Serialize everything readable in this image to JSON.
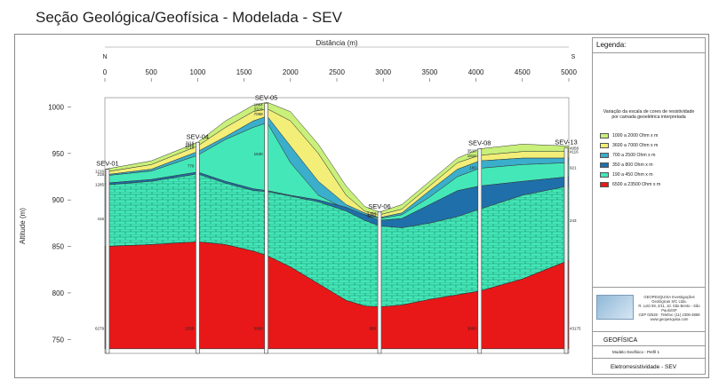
{
  "title": "Seção Geológica/Geofísica - Modelada - SEV",
  "xaxis": {
    "label": "Distância (m)",
    "ticks": [
      0,
      500,
      1000,
      1500,
      2000,
      2500,
      3000,
      3500,
      4000,
      4500,
      5000
    ],
    "range": [
      0,
      5000
    ]
  },
  "direction": {
    "left": "N",
    "right": "S"
  },
  "yaxis": {
    "label": "Altitude (m)",
    "ticks": [
      750,
      800,
      850,
      900,
      950,
      1000
    ],
    "range": [
      735,
      1010
    ]
  },
  "colors": {
    "layer_yellow_green": "#c8f07a",
    "layer_yellow": "#f2ee78",
    "layer_teal": "#3aaecb",
    "layer_blue": "#1f6faa",
    "layer_aqua": "#44e8b8",
    "layer_red": "#e81818"
  },
  "soundings": [
    {
      "name": "SEV-01",
      "x": 0,
      "top": 933,
      "values": [
        {
          "label": "1216",
          "z": 931
        },
        {
          "label": "218",
          "z": 928
        },
        {
          "label": "1285",
          "z": 917
        },
        {
          "label": "416",
          "z": 880
        },
        {
          "label": "6279",
          "z": 762
        }
      ]
    },
    {
      "name": "SEV-04",
      "x": 1000,
      "top": 962,
      "values": [
        {
          "label": "3116",
          "z": 962
        },
        {
          "label": "1816",
          "z": 960
        },
        {
          "label": "3715",
          "z": 957
        },
        {
          "label": "770",
          "z": 937
        },
        {
          "label": "2335",
          "z": 762
        }
      ]
    },
    {
      "name": "SEV-05",
      "x": 1740,
      "top": 1004,
      "values": [
        {
          "label": "1884",
          "z": 1003
        },
        {
          "label": "3316",
          "z": 998
        },
        {
          "label": "7068",
          "z": 993
        },
        {
          "label": "1630",
          "z": 950
        },
        {
          "label": "3000",
          "z": 762
        }
      ]
    },
    {
      "name": "SEV-06",
      "x": 2960,
      "top": 887,
      "values": [
        {
          "label": "1384",
          "z": 886
        },
        {
          "label": "3870",
          "z": 883
        },
        {
          "label": "950",
          "z": 762
        }
      ]
    },
    {
      "name": "SEV-08",
      "x": 4040,
      "top": 955,
      "values": [
        {
          "label": "3518",
          "z": 953
        },
        {
          "label": "1816",
          "z": 948
        },
        {
          "label": "100",
          "z": 935
        },
        {
          "label": "3000",
          "z": 762
        }
      ]
    },
    {
      "name": "SEV-13",
      "x": 5000,
      "top": 956,
      "values": [
        {
          "label": "4958",
          "z": 956
        },
        {
          "label": "4116",
          "z": 952
        },
        {
          "label": "921",
          "z": 935
        },
        {
          "label": "243",
          "z": 878
        },
        {
          "label": "43175",
          "z": 762
        }
      ]
    }
  ],
  "legend": {
    "title": "Legenda:",
    "description": "Variação da escala de cores de resistividade por camada geoelétrica interpretada",
    "items": [
      {
        "label": "1000 a 2000 Ohm x m",
        "color": "#c8f07a"
      },
      {
        "label": "3600 a 7000 Ohm x m",
        "color": "#f2ee78"
      },
      {
        "label": "700 a 2500 Ohm x m",
        "color": "#3aaecb"
      },
      {
        "label": "350 a 800 Ohm x m",
        "color": "#1f6faa"
      },
      {
        "label": "190 a 450 Ohm x m",
        "color": "#44e8b8"
      },
      {
        "label": "6500 a 23500 Ohm x m",
        "color": "#e81818"
      }
    ]
  },
  "company": {
    "name": "GEOPESQUISA Investigações Geológicas S/C Ltda.",
    "address": "R. Lotó 59, 2/11, Jd. São Bento - São Paulo/SP",
    "contact": "CEP 02528 · Telefax: (11) 2306-3869",
    "site": "www.geopesquisa.com"
  },
  "title_block": {
    "area": "GEOFÍSICA",
    "model": "Modelo Geofísico - Perfil 1",
    "method": "Eletrorresistividade - SEV"
  }
}
